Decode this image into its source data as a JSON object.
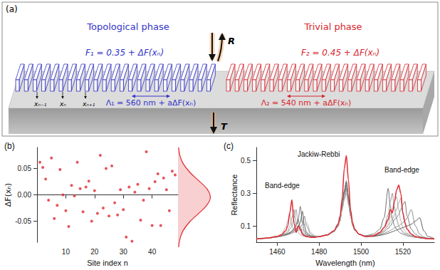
{
  "diagram": {
    "panel_label": "(a)",
    "left": {
      "title": "Topological phase",
      "fill_factor": "F₁ = 0.35 + ΔF(xₙ)",
      "period": "Λ₁ = 560 nm + aΔF(xₙ)",
      "color": "#3434c8"
    },
    "right": {
      "title": "Trivial phase",
      "fill_factor": "F₂ = 0.45 + ΔF(xₙ)",
      "period": "Λ₂ = 540 nm + aΔF(xₙ)",
      "color": "#d8262e"
    },
    "reflected": "R",
    "transmitted": "T",
    "sites": [
      "xₙ₋₁",
      "xₙ",
      "xₙ₊₁"
    ]
  },
  "chart_data": [
    {
      "panel_label": "(b)",
      "type": "scatter",
      "xlabel": "Site index n",
      "ylabel": "ΔF(xₙ)",
      "x": [
        1,
        2,
        3,
        4,
        5,
        6,
        7,
        8,
        9,
        10,
        11,
        12,
        13,
        14,
        15,
        16,
        17,
        18,
        19,
        20,
        21,
        22,
        23,
        24,
        25,
        26,
        27,
        28,
        29,
        30,
        31,
        32,
        33,
        34,
        35,
        36,
        37,
        38,
        39,
        40,
        41,
        42,
        43,
        44,
        45,
        46,
        47,
        48
      ],
      "values": [
        0.062,
        0.052,
        0.03,
        -0.01,
        0.07,
        -0.045,
        -0.02,
        0.048,
        0.0,
        -0.03,
        -0.06,
        0.018,
        -0.002,
        0.062,
        0.012,
        -0.032,
        0.015,
        0.026,
        -0.05,
        0.008,
        -0.035,
        0.075,
        -0.025,
        0.05,
        -0.04,
        0.055,
        -0.015,
        -0.038,
        0.01,
        -0.028,
        -0.08,
        0.015,
        -0.088,
        0.005,
        0.02,
        -0.048,
        -0.01,
        0.082,
        0.012,
        -0.058,
        0.025,
        0.04,
        -0.058,
        0.032,
        0.01,
        -0.03,
        0.045,
        0.038
      ],
      "color": "#e0282f",
      "marker": "circle",
      "xlim": [
        0,
        49
      ],
      "ylim": [
        -0.09,
        0.09
      ],
      "xticks": [
        10,
        20,
        30,
        40
      ],
      "yticks": [
        -0.05,
        {
          "value": 0,
          "label": "0.00"
        },
        0.05
      ],
      "grid": false,
      "distribution": {
        "type": "area",
        "y": [
          -0.09,
          -0.075,
          -0.06,
          -0.045,
          -0.03,
          -0.015,
          0,
          0.015,
          0.03,
          0.045,
          0.06,
          0.075,
          0.09
        ],
        "values": [
          0.02,
          0.06,
          0.16,
          0.35,
          0.62,
          0.88,
          1.0,
          0.9,
          0.64,
          0.37,
          0.17,
          0.06,
          0.02
        ],
        "xlim": [
          0,
          1.1
        ],
        "color": "#e0282f",
        "tick_labels": false
      }
    },
    {
      "panel_label": "(c)",
      "type": "line",
      "xlabel": "Wavelength (nm)",
      "ylabel": "Reflectance",
      "x": [
        1450,
        1455,
        1460,
        1462,
        1464,
        1465,
        1466,
        1467,
        1468,
        1469,
        1470,
        1471,
        1472,
        1473,
        1474,
        1476,
        1478,
        1480,
        1484,
        1487,
        1489,
        1490,
        1491,
        1492,
        1493,
        1494,
        1495,
        1496,
        1497,
        1499,
        1502,
        1506,
        1509,
        1511,
        1513,
        1514,
        1515,
        1516,
        1517,
        1518,
        1519,
        1520,
        1521,
        1522,
        1524,
        1526,
        1528,
        1530,
        1532,
        1535
      ],
      "series": [
        {
          "color": "#9a9a9a",
          "values": [
            0.02,
            0.025,
            0.035,
            0.04,
            0.05,
            0.06,
            0.08,
            0.1,
            0.15,
            0.2,
            0.11,
            0.07,
            0.08,
            0.06,
            0.045,
            0.035,
            0.033,
            0.036,
            0.045,
            0.065,
            0.1,
            0.14,
            0.22,
            0.31,
            0.36,
            0.27,
            0.17,
            0.11,
            0.075,
            0.05,
            0.036,
            0.04,
            0.06,
            0.09,
            0.17,
            0.25,
            0.3,
            0.2,
            0.14,
            0.1,
            0.08,
            0.065,
            0.055,
            0.05,
            0.04,
            0.033,
            0.028,
            0.025,
            0.022,
            0.02
          ]
        },
        {
          "color": "#7a7a7a",
          "values": [
            0.02,
            0.025,
            0.033,
            0.038,
            0.045,
            0.05,
            0.058,
            0.068,
            0.08,
            0.1,
            0.14,
            0.22,
            0.12,
            0.07,
            0.05,
            0.038,
            0.034,
            0.036,
            0.045,
            0.065,
            0.1,
            0.14,
            0.21,
            0.28,
            0.33,
            0.25,
            0.17,
            0.11,
            0.075,
            0.05,
            0.036,
            0.038,
            0.05,
            0.065,
            0.085,
            0.1,
            0.12,
            0.14,
            0.15,
            0.17,
            0.2,
            0.23,
            0.25,
            0.16,
            0.08,
            0.05,
            0.035,
            0.028,
            0.024,
            0.02
          ]
        },
        {
          "color": "#b0b0b0",
          "values": [
            0.02,
            0.026,
            0.038,
            0.05,
            0.09,
            0.13,
            0.18,
            0.1,
            0.07,
            0.09,
            0.06,
            0.045,
            0.04,
            0.036,
            0.034,
            0.032,
            0.032,
            0.036,
            0.046,
            0.067,
            0.1,
            0.15,
            0.23,
            0.32,
            0.38,
            0.28,
            0.18,
            0.11,
            0.075,
            0.05,
            0.036,
            0.042,
            0.06,
            0.09,
            0.13,
            0.17,
            0.2,
            0.25,
            0.28,
            0.2,
            0.13,
            0.09,
            0.07,
            0.055,
            0.04,
            0.032,
            0.027,
            0.024,
            0.022,
            0.02
          ]
        },
        {
          "color": "#8c8c8c",
          "values": [
            0.02,
            0.024,
            0.032,
            0.036,
            0.042,
            0.046,
            0.05,
            0.056,
            0.062,
            0.07,
            0.08,
            0.09,
            0.11,
            0.16,
            0.1,
            0.05,
            0.036,
            0.036,
            0.045,
            0.064,
            0.095,
            0.13,
            0.2,
            0.26,
            0.3,
            0.23,
            0.16,
            0.1,
            0.072,
            0.05,
            0.036,
            0.036,
            0.045,
            0.055,
            0.065,
            0.072,
            0.08,
            0.088,
            0.095,
            0.1,
            0.11,
            0.12,
            0.13,
            0.15,
            0.2,
            0.1,
            0.05,
            0.032,
            0.025,
            0.021
          ]
        },
        {
          "color": "#6e6e6e",
          "values": [
            0.02,
            0.025,
            0.034,
            0.04,
            0.048,
            0.054,
            0.06,
            0.07,
            0.085,
            0.11,
            0.14,
            0.09,
            0.06,
            0.048,
            0.04,
            0.035,
            0.033,
            0.036,
            0.046,
            0.066,
            0.1,
            0.14,
            0.22,
            0.3,
            0.35,
            0.26,
            0.17,
            0.11,
            0.075,
            0.05,
            0.04,
            0.05,
            0.08,
            0.15,
            0.33,
            0.22,
            0.14,
            0.1,
            0.08,
            0.065,
            0.055,
            0.05,
            0.045,
            0.04,
            0.035,
            0.03,
            0.027,
            0.024,
            0.022,
            0.02
          ]
        },
        {
          "color": "#a4a4a4",
          "values": [
            0.02,
            0.025,
            0.036,
            0.043,
            0.056,
            0.07,
            0.1,
            0.15,
            0.2,
            0.11,
            0.07,
            0.08,
            0.055,
            0.045,
            0.04,
            0.035,
            0.033,
            0.036,
            0.045,
            0.065,
            0.098,
            0.14,
            0.21,
            0.27,
            0.32,
            0.24,
            0.16,
            0.1,
            0.072,
            0.05,
            0.036,
            0.04,
            0.055,
            0.075,
            0.1,
            0.12,
            0.14,
            0.17,
            0.2,
            0.24,
            0.27,
            0.17,
            0.11,
            0.08,
            0.05,
            0.036,
            0.03,
            0.025,
            0.022,
            0.02
          ]
        },
        {
          "color": "#5c5c5c",
          "values": [
            0.02,
            0.025,
            0.033,
            0.038,
            0.045,
            0.05,
            0.055,
            0.062,
            0.07,
            0.08,
            0.095,
            0.12,
            0.19,
            0.1,
            0.06,
            0.04,
            0.035,
            0.036,
            0.046,
            0.067,
            0.1,
            0.15,
            0.23,
            0.31,
            0.37,
            0.28,
            0.18,
            0.11,
            0.075,
            0.05,
            0.036,
            0.036,
            0.042,
            0.048,
            0.055,
            0.06,
            0.065,
            0.07,
            0.075,
            0.08,
            0.085,
            0.09,
            0.095,
            0.1,
            0.11,
            0.13,
            0.15,
            0.07,
            0.035,
            0.022
          ]
        },
        {
          "color": "#bcbcbc",
          "values": [
            0.02,
            0.024,
            0.032,
            0.036,
            0.042,
            0.046,
            0.05,
            0.055,
            0.06,
            0.066,
            0.072,
            0.08,
            0.09,
            0.1,
            0.12,
            0.06,
            0.04,
            0.037,
            0.045,
            0.064,
            0.096,
            0.13,
            0.2,
            0.26,
            0.31,
            0.23,
            0.16,
            0.1,
            0.072,
            0.05,
            0.036,
            0.04,
            0.055,
            0.075,
            0.11,
            0.15,
            0.19,
            0.22,
            0.15,
            0.1,
            0.075,
            0.06,
            0.05,
            0.045,
            0.038,
            0.032,
            0.027,
            0.024,
            0.022,
            0.02
          ]
        },
        {
          "color": "#e0282f",
          "values": [
            0.02,
            0.025,
            0.035,
            0.045,
            0.07,
            0.1,
            0.18,
            0.26,
            0.12,
            0.06,
            0.1,
            0.08,
            0.05,
            0.04,
            0.035,
            0.03,
            0.03,
            0.035,
            0.045,
            0.07,
            0.11,
            0.16,
            0.27,
            0.45,
            0.53,
            0.38,
            0.2,
            0.12,
            0.08,
            0.05,
            0.035,
            0.04,
            0.06,
            0.09,
            0.14,
            0.2,
            0.18,
            0.25,
            0.32,
            0.35,
            0.3,
            0.18,
            0.12,
            0.08,
            0.05,
            0.035,
            0.03,
            0.025,
            0.022,
            0.02
          ]
        }
      ],
      "xlim": [
        1450,
        1535
      ],
      "ylim": [
        0,
        0.58
      ],
      "xticks": [
        1460,
        1480,
        1500,
        1520
      ],
      "yticks": [
        0.1,
        0.3,
        0.5
      ],
      "grid": false,
      "annotations": [
        "Band-edge",
        "Jackiw-Rebbi",
        "Band-edge"
      ]
    }
  ]
}
